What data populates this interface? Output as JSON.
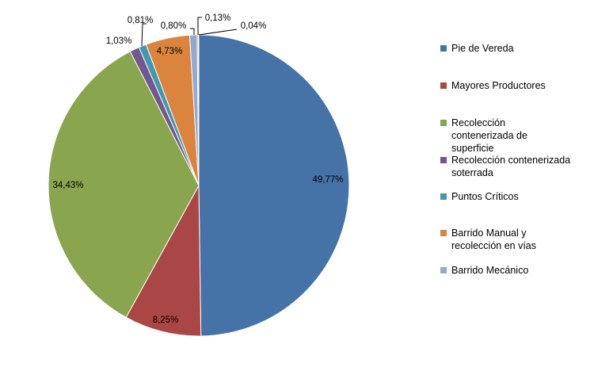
{
  "chart_data": {
    "type": "pie",
    "title": "",
    "slices": [
      {
        "name": "Pie de Vereda",
        "value": 49.77,
        "label": "49,77%",
        "color": "#4572A7"
      },
      {
        "name": "Mayores Productores",
        "value": 8.25,
        "label": "8,25%",
        "color": "#AA4643"
      },
      {
        "name": "Recolección contenerizada de superficie",
        "value": 34.43,
        "label": "34,43%",
        "color": "#89A54E"
      },
      {
        "name": "Recolección contenerizada soterrada",
        "value": 1.03,
        "label": "1,03%",
        "color": "#71588F"
      },
      {
        "name": "Puntos Críticos",
        "value": 0.81,
        "label": "0,81%",
        "color": "#4198AF"
      },
      {
        "name": "Barrido Manual y recolección en vías",
        "value": 4.73,
        "label": "4,73%",
        "color": "#DB843D"
      },
      {
        "name": "Barrido Mecánico",
        "value": 0.8,
        "label": "0,80%",
        "color": "#93A9CF"
      },
      {
        "name": "",
        "value": 0.13,
        "label": "0,13%",
        "color": "#D19392"
      },
      {
        "name": "",
        "value": 0.04,
        "label": "0,04%",
        "color": "#B9CD96"
      }
    ],
    "legend_position": "right"
  }
}
